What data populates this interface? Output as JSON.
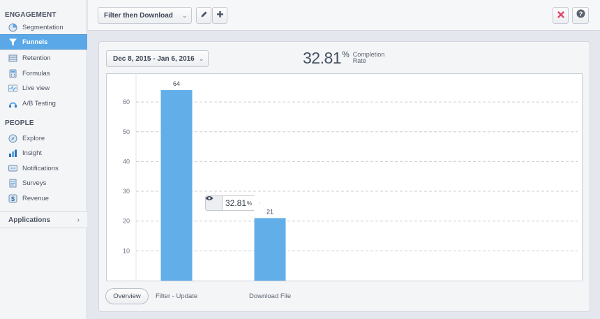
{
  "sidebar": {
    "engagement_title": "ENGAGEMENT",
    "engagement_items": [
      {
        "label": "Segmentation",
        "icon": "pie-chart-icon"
      },
      {
        "label": "Funnels",
        "icon": "funnel-icon",
        "active": true
      },
      {
        "label": "Retention",
        "icon": "retention-grid-icon"
      },
      {
        "label": "Formulas",
        "icon": "calculator-icon"
      },
      {
        "label": "Live view",
        "icon": "pulse-icon"
      },
      {
        "label": "A/B Testing",
        "icon": "ab-test-icon"
      }
    ],
    "people_title": "PEOPLE",
    "people_items": [
      {
        "label": "Explore",
        "icon": "explore-icon"
      },
      {
        "label": "Insight",
        "icon": "insight-icon"
      },
      {
        "label": "Notifications",
        "icon": "notifications-icon"
      },
      {
        "label": "Surveys",
        "icon": "surveys-icon"
      },
      {
        "label": "Revenue",
        "icon": "revenue-icon"
      }
    ],
    "applications_label": "Applications"
  },
  "toolbar": {
    "report_name": "Filter then Download"
  },
  "panel": {
    "date_range": "Dec 8, 2015 - Jan 6, 2016",
    "completion_rate": "32.81",
    "completion_pct_sign": "%",
    "completion_label_line1": "Completion",
    "completion_label_line2": "Rate",
    "overview_label": "Overview",
    "tooltip_value": "32.81",
    "tooltip_pct": "%"
  },
  "colors": {
    "accent": "#5aa8e7",
    "bar": "#62aee8",
    "close": "#e0456a"
  },
  "chart_data": {
    "type": "bar",
    "categories": [
      "Filter - Update",
      "Download File"
    ],
    "values": [
      64,
      21
    ],
    "ylim": [
      0,
      68
    ],
    "yticks": [
      10,
      20,
      30,
      40,
      50,
      60
    ],
    "grid": true
  }
}
